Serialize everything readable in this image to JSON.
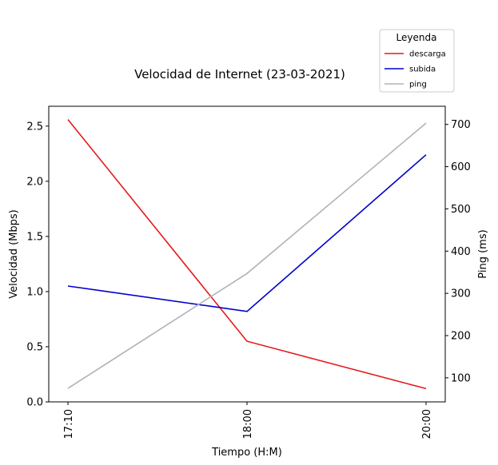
{
  "chart_data": {
    "type": "line",
    "title": "Velocidad de Internet (23-03-2021)",
    "xlabel": "Tiempo (H:M)",
    "ylabel": "Velocidad (Mbps)",
    "y2label": "Ping (ms)",
    "categories": [
      "17:10",
      "18:00",
      "20:00"
    ],
    "ylim": [
      0,
      2.68
    ],
    "yticks": [
      "0.0",
      "0.5",
      "1.0",
      "1.5",
      "2.0",
      "2.5"
    ],
    "y2lim": [
      43,
      743
    ],
    "y2ticks": [
      "100",
      "200",
      "300",
      "400",
      "500",
      "600",
      "700"
    ],
    "legend": {
      "title": "Leyenda",
      "placement": "top-right (outside)"
    },
    "series": [
      {
        "name": "descarga",
        "axis": "left",
        "color": "#e31a1c",
        "values": [
          2.56,
          0.55,
          0.12
        ]
      },
      {
        "name": "subida",
        "axis": "left",
        "color": "#0000cc",
        "values": [
          1.05,
          0.82,
          2.24
        ]
      },
      {
        "name": "ping",
        "axis": "right",
        "color": "#b0b3b8",
        "values": [
          75,
          347,
          703
        ]
      }
    ]
  }
}
